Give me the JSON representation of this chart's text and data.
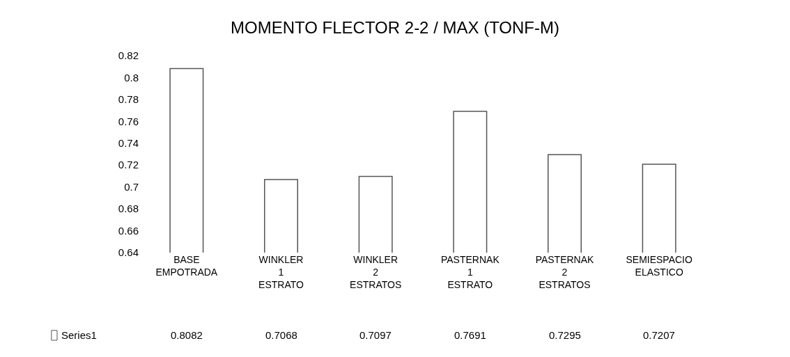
{
  "chart_data": {
    "type": "bar",
    "title": "MOMENTO FLECTOR 2-2 / MAX (TONF-M)",
    "categories": [
      "BASE EMPOTRADA",
      "WINKLER 1 ESTRATO",
      "WINKLER 2 ESTRATOS",
      "PASTERNAK 1 ESTRATO",
      "PASTERNAK 2 ESTRATOS",
      "SEMIESPACIO ELASTICO"
    ],
    "series": [
      {
        "name": "Series1",
        "color": "#ffffff",
        "values": [
          0.8082,
          0.7068,
          0.7097,
          0.7691,
          0.7295,
          0.7207
        ]
      }
    ],
    "ylim": [
      0.64,
      0.82
    ],
    "yticks": [
      0.64,
      0.66,
      0.68,
      0.7,
      0.72,
      0.74,
      0.76,
      0.78,
      0.8,
      0.82
    ],
    "data_labels": true,
    "legend": "bottom left"
  }
}
